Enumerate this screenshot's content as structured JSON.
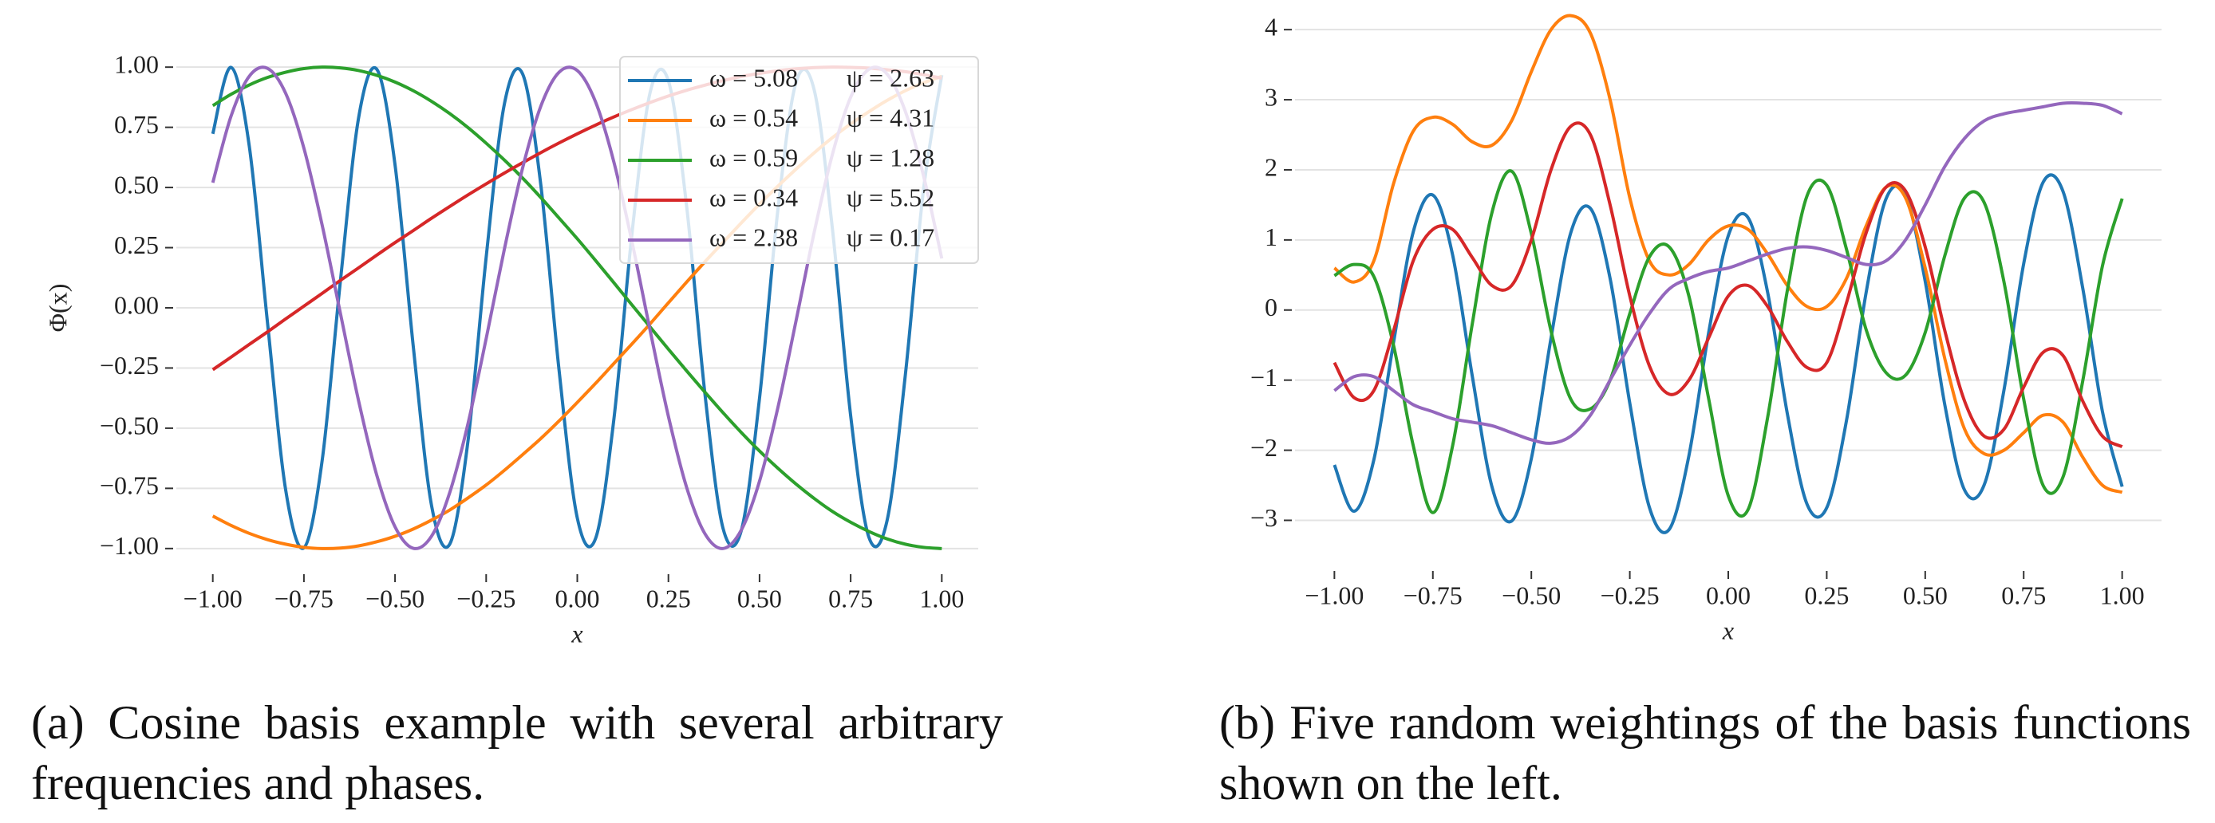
{
  "chart_data": [
    {
      "type": "line",
      "xlabel": "x",
      "ylabel": "Φ(x)",
      "caption": "(a) Cosine basis example with several arbitrary frequencies and phases.",
      "legend": "upper right",
      "grid": true,
      "xlim": [
        -1.1,
        1.1
      ],
      "ylim": [
        -1.1,
        1.1
      ],
      "xticks": [
        {
          "value": -1,
          "label": "−1.00"
        },
        {
          "value": -0.75,
          "label": "−0.75"
        },
        {
          "value": -0.5,
          "label": "−0.50"
        },
        {
          "value": -0.25,
          "label": "−0.25"
        },
        {
          "value": 0,
          "label": "0.00"
        },
        {
          "value": 0.25,
          "label": "0.25"
        },
        {
          "value": 0.5,
          "label": "0.50"
        },
        {
          "value": 0.75,
          "label": "0.75"
        },
        {
          "value": 1,
          "label": "1.00"
        }
      ],
      "yticks": [
        {
          "value": -1,
          "label": "−1.00"
        },
        {
          "value": -0.75,
          "label": "−0.75"
        },
        {
          "value": -0.5,
          "label": "−0.50"
        },
        {
          "value": -0.25,
          "label": "−0.25"
        },
        {
          "value": 0,
          "label": "0.00"
        },
        {
          "value": 0.25,
          "label": "0.25"
        },
        {
          "value": 0.5,
          "label": "0.50"
        },
        {
          "value": 0.75,
          "label": "0.75"
        },
        {
          "value": 1,
          "label": "1.00"
        }
      ],
      "x": [
        -1,
        -0.95,
        -0.9,
        -0.85,
        -0.8,
        -0.75,
        -0.7,
        -0.65,
        -0.6,
        -0.55,
        -0.5,
        -0.45,
        -0.4,
        -0.35,
        -0.3,
        -0.25,
        -0.2,
        -0.15,
        -0.1,
        -0.05,
        0,
        0.05,
        0.1,
        0.15,
        0.2,
        0.25,
        0.3,
        0.35,
        0.4,
        0.45,
        0.5,
        0.55,
        0.6,
        0.65,
        0.7,
        0.75,
        0.8,
        0.85,
        0.9,
        0.95,
        1
      ],
      "series": [
        {
          "name": "ω = 5.08",
          "phase": "ψ = 2.63",
          "color": "#1f77b4",
          "values": [
            0.723,
            0.999,
            0.673,
            -0.06,
            -0.757,
            -0.997,
            -0.635,
            0.11,
            0.789,
            0.991,
            0.594,
            -0.16,
            -0.82,
            -0.982,
            -0.555,
            0.21,
            0.847,
            0.972,
            0.51,
            -0.259,
            -0.873,
            -0.959,
            -0.468,
            0.308,
            0.896,
            0.943,
            0.422,
            -0.355,
            -0.917,
            -0.925,
            -0.375,
            0.403,
            0.936,
            0.905,
            0.328,
            -0.448,
            -0.953,
            -0.883,
            -0.279,
            0.493,
            0.967
          ]
        },
        {
          "name": "ω = 0.54",
          "phase": "ψ = 4.31",
          "color": "#ff7f0e",
          "values": [
            -0.865,
            -0.904,
            -0.937,
            -0.963,
            -0.982,
            -0.995,
            -1.0,
            -0.998,
            -0.989,
            -0.972,
            -0.949,
            -0.919,
            -0.882,
            -0.84,
            -0.79,
            -0.736,
            -0.675,
            -0.61,
            -0.543,
            -0.47,
            -0.393,
            -0.314,
            -0.232,
            -0.15,
            -0.066,
            0.021,
            0.107,
            0.191,
            0.272,
            0.353,
            0.431,
            0.505,
            0.576,
            0.644,
            0.707,
            0.764,
            0.815,
            0.862,
            0.902,
            0.935,
            0.962
          ]
        },
        {
          "name": "ω = 0.59",
          "phase": "ψ = 1.28",
          "color": "#2ca02c",
          "values": [
            0.84,
            0.887,
            0.926,
            0.957,
            0.979,
            0.994,
            1.0,
            0.997,
            0.986,
            0.966,
            0.938,
            0.902,
            0.858,
            0.807,
            0.749,
            0.684,
            0.614,
            0.539,
            0.458,
            0.373,
            0.287,
            0.197,
            0.105,
            0.012,
            -0.08,
            -0.172,
            -0.262,
            -0.35,
            -0.436,
            -0.518,
            -0.595,
            -0.666,
            -0.732,
            -0.792,
            -0.846,
            -0.891,
            -0.929,
            -0.96,
            -0.982,
            -0.995,
            -1.0
          ]
        },
        {
          "name": "ω = 0.34",
          "phase": "ψ = 5.52",
          "color": "#d62728",
          "values": [
            -0.257,
            -0.205,
            -0.152,
            -0.1,
            -0.046,
            0.007,
            0.06,
            0.114,
            0.166,
            0.219,
            0.271,
            0.321,
            0.372,
            0.421,
            0.469,
            0.515,
            0.56,
            0.603,
            0.645,
            0.685,
            0.723,
            0.759,
            0.793,
            0.824,
            0.853,
            0.88,
            0.904,
            0.925,
            0.944,
            0.961,
            0.974,
            0.985,
            0.993,
            0.998,
            1.0,
            0.999,
            0.996,
            0.989,
            0.981,
            0.969,
            0.954
          ]
        },
        {
          "name": "ω = 2.38",
          "phase": "ψ = 0.17",
          "color": "#9467bd",
          "values": [
            0.52,
            0.796,
            0.962,
            0.995,
            0.891,
            0.663,
            0.344,
            -0.022,
            -0.386,
            -0.696,
            -0.91,
            -0.999,
            -0.949,
            -0.768,
            -0.482,
            -0.128,
            0.244,
            0.581,
            0.838,
            0.979,
            0.986,
            0.856,
            0.608,
            0.275,
            -0.095,
            -0.451,
            -0.746,
            -0.938,
            -1.0,
            -0.923,
            -0.72,
            -0.417,
            -0.055,
            0.314,
            0.638,
            0.875,
            0.991,
            0.971,
            0.816,
            0.548,
            0.205
          ]
        }
      ]
    },
    {
      "type": "line",
      "xlabel": "x",
      "caption": "(b) Five random weightings of the basis functions shown on the left.",
      "grid": true,
      "xlim": [
        -1.1,
        1.1
      ],
      "ylim": [
        -3.7,
        4.4
      ],
      "xticks": [
        {
          "value": -1,
          "label": "−1.00"
        },
        {
          "value": -0.75,
          "label": "−0.75"
        },
        {
          "value": -0.5,
          "label": "−0.50"
        },
        {
          "value": -0.25,
          "label": "−0.25"
        },
        {
          "value": 0,
          "label": "0.00"
        },
        {
          "value": 0.25,
          "label": "0.25"
        },
        {
          "value": 0.5,
          "label": "0.50"
        },
        {
          "value": 0.75,
          "label": "0.75"
        },
        {
          "value": 1,
          "label": "1.00"
        }
      ],
      "yticks": [
        {
          "value": -3,
          "label": "−3"
        },
        {
          "value": -2,
          "label": "−2"
        },
        {
          "value": -1,
          "label": "−1"
        },
        0,
        1,
        2,
        3,
        4
      ],
      "x": [
        -1,
        -0.95,
        -0.9,
        -0.85,
        -0.8,
        -0.75,
        -0.7,
        -0.65,
        -0.6,
        -0.55,
        -0.5,
        -0.45,
        -0.4,
        -0.35,
        -0.3,
        -0.25,
        -0.2,
        -0.15,
        -0.1,
        -0.05,
        0,
        0.05,
        0.1,
        0.15,
        0.2,
        0.25,
        0.3,
        0.35,
        0.4,
        0.45,
        0.5,
        0.55,
        0.6,
        0.65,
        0.7,
        0.75,
        0.8,
        0.85,
        0.9,
        0.95,
        1
      ],
      "series": [
        {
          "color": "#1f77b4",
          "values": [
            -2.21,
            -2.87,
            -2.14,
            -0.47,
            1.11,
            1.64,
            0.79,
            -0.94,
            -2.52,
            -3.01,
            -2.12,
            -0.4,
            1.1,
            1.45,
            0.45,
            -1.33,
            -2.82,
            -3.13,
            -2.08,
            -0.33,
            1.06,
            1.32,
            0.25,
            -1.48,
            -2.77,
            -2.82,
            -1.58,
            0.25,
            1.58,
            1.64,
            0.41,
            -1.36,
            -2.57,
            -2.49,
            -1.14,
            0.66,
            1.83,
            1.69,
            0.31,
            -1.45,
            -2.52
          ]
        },
        {
          "color": "#ff7f0e",
          "values": [
            0.6,
            0.4,
            0.7,
            1.8,
            2.55,
            2.75,
            2.65,
            2.4,
            2.35,
            2.7,
            3.4,
            4.0,
            4.2,
            3.95,
            3.0,
            1.6,
            0.7,
            0.5,
            0.65,
            1.0,
            1.2,
            1.15,
            0.8,
            0.35,
            0.05,
            0.05,
            0.45,
            1.2,
            1.75,
            1.6,
            0.6,
            -0.7,
            -1.7,
            -2.05,
            -2.0,
            -1.75,
            -1.5,
            -1.6,
            -2.1,
            -2.5,
            -2.6
          ]
        },
        {
          "color": "#2ca02c",
          "values": [
            0.49,
            0.65,
            0.48,
            -0.5,
            -1.93,
            -2.89,
            -1.94,
            -0.2,
            1.39,
            1.98,
            1.09,
            -0.3,
            -1.27,
            -1.41,
            -1.0,
            -0.05,
            0.76,
            0.9,
            0.2,
            -1.26,
            -2.65,
            -2.85,
            -1.53,
            0.28,
            1.63,
            1.78,
            0.87,
            -0.28,
            -0.89,
            -0.93,
            -0.32,
            0.78,
            1.6,
            1.53,
            0.4,
            -1.27,
            -2.51,
            -2.38,
            -1.01,
            0.63,
            1.59
          ]
        },
        {
          "color": "#d62728",
          "values": [
            -0.75,
            -1.25,
            -1.15,
            -0.3,
            0.7,
            1.15,
            1.15,
            0.75,
            0.35,
            0.35,
            1.0,
            2.0,
            2.62,
            2.5,
            1.5,
            0.2,
            -0.8,
            -1.2,
            -1.0,
            -0.4,
            0.2,
            0.35,
            0.05,
            -0.45,
            -0.82,
            -0.75,
            0.1,
            1.1,
            1.75,
            1.7,
            0.9,
            -0.3,
            -1.3,
            -1.8,
            -1.7,
            -1.1,
            -0.6,
            -0.65,
            -1.3,
            -1.8,
            -1.95
          ]
        },
        {
          "color": "#9467bd",
          "values": [
            -1.15,
            -0.95,
            -0.95,
            -1.15,
            -1.35,
            -1.45,
            -1.55,
            -1.6,
            -1.65,
            -1.75,
            -1.85,
            -1.9,
            -1.8,
            -1.5,
            -1.0,
            -0.5,
            -0.05,
            0.3,
            0.45,
            0.55,
            0.6,
            0.7,
            0.8,
            0.88,
            0.9,
            0.85,
            0.75,
            0.65,
            0.7,
            1.0,
            1.5,
            2.05,
            2.45,
            2.7,
            2.8,
            2.85,
            2.9,
            2.95,
            2.95,
            2.92,
            2.8
          ]
        }
      ]
    }
  ]
}
